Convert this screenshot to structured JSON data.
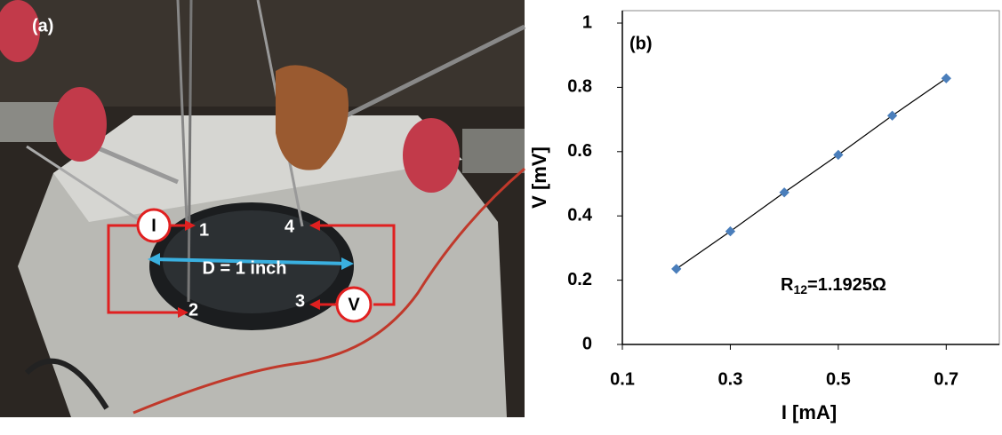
{
  "photo": {
    "label": "(a)",
    "electrodes": [
      "1",
      "2",
      "3",
      "4"
    ],
    "diameter": "D = 1 inch",
    "current": "I",
    "voltage": "V"
  },
  "chart_data": {
    "type": "scatter",
    "panel_label": "(b)",
    "x_label": "I [mA]",
    "y_label": "V [mV]",
    "annotation": {
      "base": "R",
      "sub": "12",
      "rest": "=1.1925Ω"
    },
    "x": [
      0.2,
      0.3,
      0.4,
      0.5,
      0.6,
      0.7
    ],
    "values": [
      0.235,
      0.352,
      0.473,
      0.59,
      0.712,
      0.828
    ],
    "color": "#4a7ebb",
    "line_color": "#000000",
    "xlim": [
      0.1,
      0.8
    ],
    "xticks": [
      0.1,
      0.3,
      0.5,
      0.7
    ],
    "ylim": [
      0,
      1
    ],
    "yticks": [
      0,
      0.2,
      0.4,
      0.6,
      0.8,
      1
    ]
  }
}
